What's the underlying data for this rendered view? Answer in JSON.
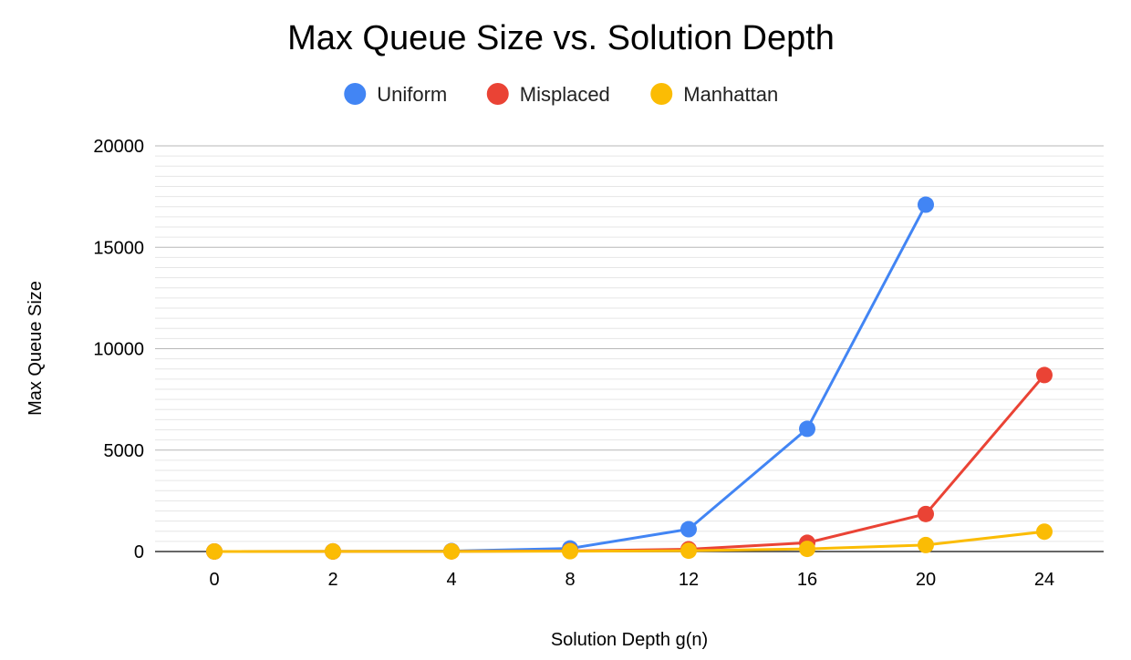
{
  "chart_data": {
    "type": "line",
    "title": "Max Queue Size vs. Solution Depth",
    "xlabel": "Solution Depth g(n)",
    "ylabel": "Max Queue Size",
    "categories": [
      "0",
      "2",
      "4",
      "8",
      "12",
      "16",
      "20",
      "24"
    ],
    "ylim": [
      0,
      20000
    ],
    "yticks": [
      "0",
      "5000",
      "10000",
      "15000",
      "20000"
    ],
    "y_tick_values": [
      0,
      5000,
      10000,
      15000,
      20000
    ],
    "grid": true,
    "minor_gridlines_per_interval": 9,
    "legend_position": "top",
    "series": [
      {
        "name": "Uniform",
        "color": "#4285F4",
        "values": [
          1,
          5,
          20,
          150,
          1100,
          6050,
          17100,
          null
        ]
      },
      {
        "name": "Misplaced",
        "color": "#EA4335",
        "values": [
          1,
          3,
          8,
          30,
          110,
          430,
          1850,
          8700
        ]
      },
      {
        "name": "Manhattan",
        "color": "#FBBC04",
        "values": [
          1,
          3,
          6,
          15,
          40,
          130,
          320,
          980
        ]
      }
    ]
  }
}
